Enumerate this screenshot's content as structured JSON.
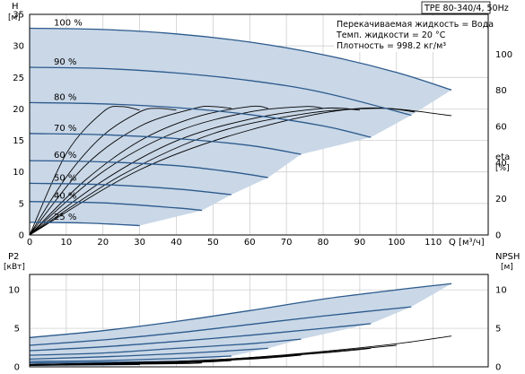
{
  "title": "TPE 80-340/4, 50Hz",
  "info_lines": [
    "Перекачиваемая жидкость = Вода",
    "Темп. жидкости = 20 °C",
    "Плотность = 998.2 кг/м³"
  ],
  "colors": {
    "area_fill": "#c9d7e7",
    "curve": "#2c5a8c",
    "npsh_curve": "#000000",
    "eta_curve": "#000000",
    "grid": "#c8c8c8",
    "axis": "#000000"
  },
  "chart_data": [
    {
      "type": "line",
      "name": "head",
      "ylabel": "H",
      "yunit": "[м]",
      "y2label": "eta",
      "y2unit": "[%]",
      "xunit": "Q [м³/ч]",
      "xlim": [
        0,
        125
      ],
      "ylim": [
        0,
        35
      ],
      "y2lim": [
        0,
        100
      ],
      "xticks": [
        0,
        10,
        20,
        30,
        40,
        50,
        60,
        70,
        80,
        90,
        100,
        110
      ],
      "yticks": [
        0,
        5,
        10,
        15,
        20,
        25,
        30,
        35
      ],
      "y2ticks": [
        0,
        20,
        40,
        60,
        80,
        100
      ],
      "grid": true,
      "speed_labels": [
        "100 %",
        "90 %",
        "80 %",
        "70 %",
        "60 %",
        "50 %",
        "40 %",
        "25 %"
      ],
      "series": [
        {
          "name": "100 %",
          "x": [
            0,
            20,
            40,
            60,
            80,
            100,
            115
          ],
          "y": [
            32.8,
            32.6,
            31.9,
            30.6,
            28.6,
            25.8,
            23.0
          ]
        },
        {
          "name": "90 %",
          "x": [
            0,
            20,
            40,
            60,
            80,
            104
          ],
          "y": [
            26.6,
            26.4,
            25.7,
            24.5,
            22.6,
            19.0
          ]
        },
        {
          "name": "80 %",
          "x": [
            0,
            20,
            40,
            60,
            80,
            93
          ],
          "y": [
            21.0,
            20.8,
            20.2,
            19.1,
            17.3,
            15.5
          ]
        },
        {
          "name": "70 %",
          "x": [
            0,
            20,
            40,
            60,
            74
          ],
          "y": [
            16.1,
            15.9,
            15.3,
            14.2,
            12.8
          ]
        },
        {
          "name": "60 %",
          "x": [
            0,
            20,
            40,
            55,
            65
          ],
          "y": [
            11.8,
            11.6,
            11.0,
            10.0,
            9.1
          ]
        },
        {
          "name": "50 %",
          "x": [
            0,
            20,
            40,
            55
          ],
          "y": [
            8.2,
            8.0,
            7.3,
            6.4
          ]
        },
        {
          "name": "40 %",
          "x": [
            0,
            20,
            40,
            47
          ],
          "y": [
            5.3,
            5.1,
            4.3,
            3.9
          ]
        },
        {
          "name": "25 %",
          "x": [
            0,
            15,
            30
          ],
          "y": [
            2.0,
            1.9,
            1.5
          ]
        }
      ],
      "efficiency_curves": [
        {
          "x": [
            0,
            10,
            20,
            25,
            30
          ],
          "y": [
            0,
            45,
            68,
            71,
            69
          ]
        },
        {
          "x": [
            0,
            10,
            20,
            30,
            35,
            40
          ],
          "y": [
            0,
            32,
            55,
            68,
            70,
            69
          ]
        },
        {
          "x": [
            0,
            15,
            30,
            45,
            50,
            55
          ],
          "y": [
            0,
            38,
            60,
            70,
            71,
            70
          ]
        },
        {
          "x": [
            0,
            15,
            30,
            45,
            60,
            65
          ],
          "y": [
            0,
            30,
            52,
            65,
            71,
            70
          ]
        },
        {
          "x": [
            0,
            20,
            40,
            60,
            75,
            80
          ],
          "y": [
            0,
            35,
            57,
            68,
            71,
            70
          ]
        },
        {
          "x": [
            0,
            20,
            40,
            60,
            80,
            90
          ],
          "y": [
            0,
            30,
            52,
            64,
            70,
            69
          ]
        },
        {
          "x": [
            0,
            25,
            50,
            75,
            95,
            105
          ],
          "y": [
            0,
            33,
            56,
            67,
            70,
            68
          ]
        },
        {
          "x": [
            0,
            30,
            60,
            90,
            115
          ],
          "y": [
            0,
            36,
            58,
            70,
            66
          ]
        }
      ]
    },
    {
      "type": "line",
      "name": "power",
      "ylabel": "P2",
      "yunit": "[кВт]",
      "y2label": "NPSH",
      "y2unit": "[м]",
      "xlim": [
        0,
        125
      ],
      "ylim": [
        0,
        12
      ],
      "y2lim": [
        0,
        12
      ],
      "yticks": [
        0,
        5,
        10
      ],
      "y2ticks": [
        0,
        5,
        10
      ],
      "grid": true,
      "series": [
        {
          "name": "100 %",
          "x": [
            0,
            20,
            40,
            60,
            80,
            100,
            115
          ],
          "y": [
            3.8,
            4.7,
            5.9,
            7.3,
            8.8,
            10.0,
            10.8
          ]
        },
        {
          "name": "90 %",
          "x": [
            0,
            20,
            40,
            60,
            80,
            104
          ],
          "y": [
            2.8,
            3.5,
            4.4,
            5.5,
            6.6,
            7.8
          ]
        },
        {
          "name": "80 %",
          "x": [
            0,
            20,
            40,
            60,
            80,
            93
          ],
          "y": [
            2.1,
            2.6,
            3.3,
            4.1,
            5.0,
            5.6
          ]
        },
        {
          "name": "70 %",
          "x": [
            0,
            20,
            40,
            60,
            74
          ],
          "y": [
            1.5,
            1.8,
            2.4,
            3.0,
            3.6
          ]
        },
        {
          "name": "60 %",
          "x": [
            0,
            20,
            40,
            55,
            65
          ],
          "y": [
            1.0,
            1.3,
            1.7,
            2.1,
            2.4
          ]
        },
        {
          "name": "50 %",
          "x": [
            0,
            20,
            40,
            55
          ],
          "y": [
            0.7,
            0.8,
            1.1,
            1.4
          ]
        },
        {
          "name": "40 %",
          "x": [
            0,
            20,
            40,
            47
          ],
          "y": [
            0.5,
            0.6,
            0.7,
            0.8
          ]
        },
        {
          "name": "25 %",
          "x": [
            0,
            15,
            30
          ],
          "y": [
            0.2,
            0.25,
            0.3
          ]
        }
      ],
      "npsh_curves": [
        {
          "x": [
            0,
            40,
            60,
            80,
            100,
            115
          ],
          "y": [
            0.3,
            0.7,
            1.2,
            2.0,
            3.0,
            4.0
          ]
        },
        {
          "x": [
            0,
            40,
            60,
            80,
            100
          ],
          "y": [
            0.3,
            0.7,
            1.2,
            1.9,
            2.8
          ]
        },
        {
          "x": [
            0,
            40,
            60,
            80,
            93
          ],
          "y": [
            0.3,
            0.6,
            1.1,
            1.8,
            2.4
          ]
        },
        {
          "x": [
            0,
            40,
            60,
            74
          ],
          "y": [
            0.3,
            0.6,
            1.0,
            1.5
          ]
        },
        {
          "x": [
            0,
            40,
            55,
            65
          ],
          "y": [
            0.3,
            0.5,
            0.9,
            1.2
          ]
        },
        {
          "x": [
            0,
            40,
            55
          ],
          "y": [
            0.2,
            0.5,
            0.8
          ]
        },
        {
          "x": [
            0,
            40,
            47
          ],
          "y": [
            0.2,
            0.4,
            0.5
          ]
        },
        {
          "x": [
            0,
            30
          ],
          "y": [
            0.2,
            0.3
          ]
        }
      ]
    }
  ]
}
